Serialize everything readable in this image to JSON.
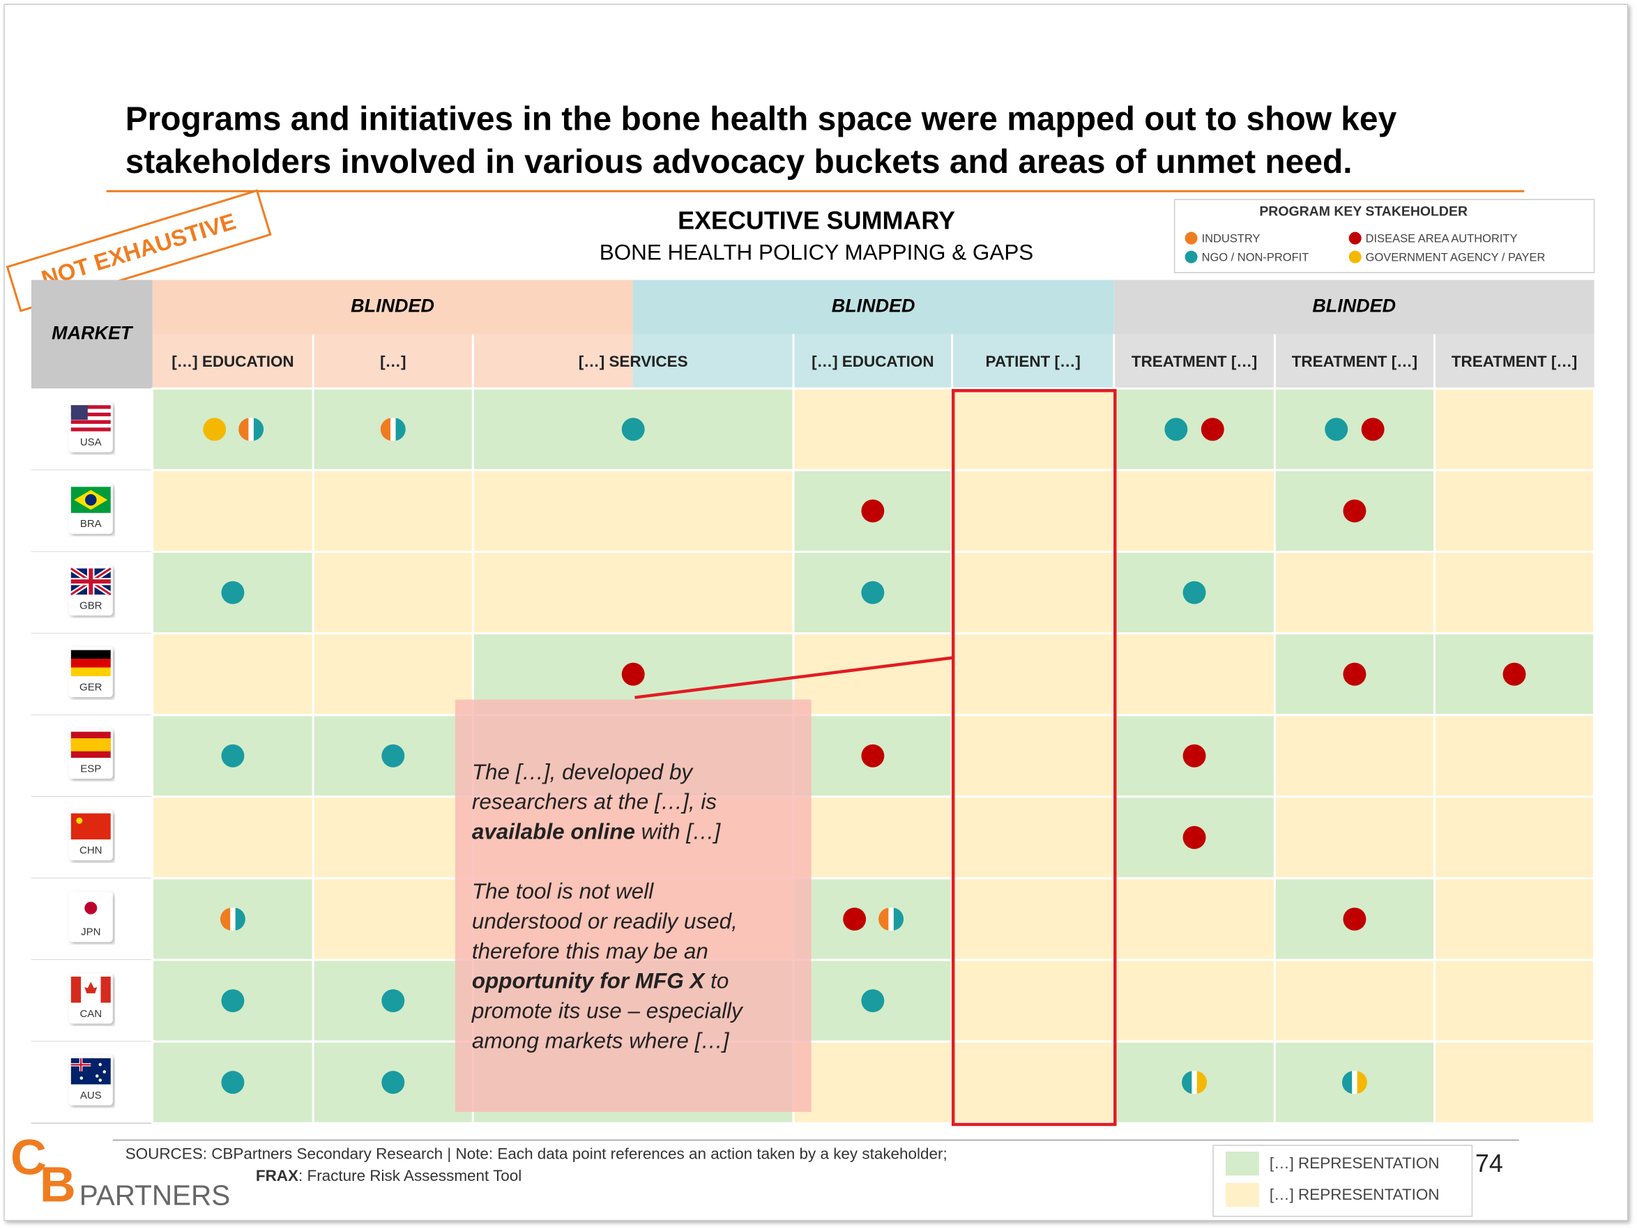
{
  "title": [
    "Programs and initiatives in the bone health space were mapped out to show key",
    "stakeholders involved in various advocacy buckets and areas of unmet need."
  ],
  "summary": {
    "heading": "EXECUTIVE SUMMARY",
    "subtitle": "BONE HEALTH POLICY MAPPING & GAPS"
  },
  "stamp": "NOT EXHAUSTIVE",
  "stakeholder_legend": {
    "title": "PROGRAM KEY STAKEHOLDER",
    "items": [
      {
        "name": "INDUSTRY",
        "color": "#f07c20"
      },
      {
        "name": "NGO / NON-PROFIT",
        "color": "#1a9ba0"
      },
      {
        "name": "DISEASE AREA AUTHORITY",
        "color": "#c00000"
      },
      {
        "name": "GOVERNMENT AGENCY / PAYER",
        "color": "#f5b800"
      }
    ]
  },
  "table": {
    "market_header": "MARKET",
    "groups": [
      {
        "label": "BLINDED",
        "color": "#fcd5bf"
      },
      {
        "label": "BLINDED",
        "color": "#bfe3e4"
      },
      {
        "label": "BLINDED",
        "color": "#d9d9d9"
      }
    ],
    "columns": [
      "[…] EDUCATION",
      "[…]",
      "[…] SERVICES",
      "[…] EDUCATION",
      "PATIENT […]",
      "TREATMENT […]",
      "TREATMENT […]",
      "TREATMENT […]"
    ],
    "rows": [
      {
        "market": "USA",
        "cells": [
          {
            "fill": "#d4ecca",
            "dots": [
              "#f5b800",
              [
                "#f07c20",
                "#1a9ba0"
              ]
            ]
          },
          {
            "fill": "#d4ecca",
            "dots": [
              [
                "#f07c20",
                "#1a9ba0"
              ]
            ]
          },
          {
            "fill": "#d4ecca",
            "dots": [
              "#1a9ba0"
            ]
          },
          {
            "fill": "#fff0c8",
            "dots": []
          },
          {
            "fill": "#fff0c8",
            "dots": []
          },
          {
            "fill": "#d4ecca",
            "dots": [
              "#1a9ba0",
              "#c00000"
            ]
          },
          {
            "fill": "#d4ecca",
            "dots": [
              "#1a9ba0",
              "#c00000"
            ]
          },
          {
            "fill": "#fff0c8",
            "dots": []
          }
        ]
      },
      {
        "market": "BRA",
        "cells": [
          {
            "fill": "#fff0c8",
            "dots": []
          },
          {
            "fill": "#fff0c8",
            "dots": []
          },
          {
            "fill": "#fff0c8",
            "dots": []
          },
          {
            "fill": "#d4ecca",
            "dots": [
              "#c00000"
            ]
          },
          {
            "fill": "#fff0c8",
            "dots": []
          },
          {
            "fill": "#fff0c8",
            "dots": []
          },
          {
            "fill": "#d4ecca",
            "dots": [
              "#c00000"
            ]
          },
          {
            "fill": "#fff0c8",
            "dots": []
          }
        ]
      },
      {
        "market": "GBR",
        "cells": [
          {
            "fill": "#d4ecca",
            "dots": [
              "#1a9ba0"
            ]
          },
          {
            "fill": "#fff0c8",
            "dots": []
          },
          {
            "fill": "#fff0c8",
            "dots": []
          },
          {
            "fill": "#d4ecca",
            "dots": [
              "#1a9ba0"
            ]
          },
          {
            "fill": "#fff0c8",
            "dots": []
          },
          {
            "fill": "#d4ecca",
            "dots": [
              "#1a9ba0"
            ]
          },
          {
            "fill": "#fff0c8",
            "dots": []
          },
          {
            "fill": "#fff0c8",
            "dots": []
          }
        ]
      },
      {
        "market": "GER",
        "cells": [
          {
            "fill": "#fff0c8",
            "dots": []
          },
          {
            "fill": "#fff0c8",
            "dots": []
          },
          {
            "fill": "#d4ecca",
            "dots": [
              "#c00000"
            ]
          },
          {
            "fill": "#fff0c8",
            "dots": []
          },
          {
            "fill": "#fff0c8",
            "dots": []
          },
          {
            "fill": "#fff0c8",
            "dots": []
          },
          {
            "fill": "#d4ecca",
            "dots": [
              "#c00000"
            ]
          },
          {
            "fill": "#d4ecca",
            "dots": [
              "#c00000"
            ]
          }
        ]
      },
      {
        "market": "ESP",
        "cells": [
          {
            "fill": "#d4ecca",
            "dots": [
              "#1a9ba0"
            ]
          },
          {
            "fill": "#d4ecca",
            "dots": [
              "#1a9ba0"
            ]
          },
          {
            "fill": "#d4ecca",
            "dots": []
          },
          {
            "fill": "#d4ecca",
            "dots": [
              "#c00000"
            ]
          },
          {
            "fill": "#fff0c8",
            "dots": []
          },
          {
            "fill": "#d4ecca",
            "dots": [
              "#c00000"
            ]
          },
          {
            "fill": "#fff0c8",
            "dots": []
          },
          {
            "fill": "#fff0c8",
            "dots": []
          }
        ]
      },
      {
        "market": "CHN",
        "cells": [
          {
            "fill": "#fff0c8",
            "dots": []
          },
          {
            "fill": "#fff0c8",
            "dots": []
          },
          {
            "fill": "#fff0c8",
            "dots": []
          },
          {
            "fill": "#fff0c8",
            "dots": []
          },
          {
            "fill": "#fff0c8",
            "dots": []
          },
          {
            "fill": "#d4ecca",
            "dots": [
              "#c00000"
            ]
          },
          {
            "fill": "#fff0c8",
            "dots": []
          },
          {
            "fill": "#fff0c8",
            "dots": []
          }
        ]
      },
      {
        "market": "JPN",
        "cells": [
          {
            "fill": "#d4ecca",
            "dots": [
              [
                "#f07c20",
                "#1a9ba0"
              ]
            ]
          },
          {
            "fill": "#fff0c8",
            "dots": []
          },
          {
            "fill": "#fff0c8",
            "dots": []
          },
          {
            "fill": "#d4ecca",
            "dots": [
              "#c00000",
              [
                "#f07c20",
                "#1a9ba0"
              ]
            ]
          },
          {
            "fill": "#fff0c8",
            "dots": []
          },
          {
            "fill": "#fff0c8",
            "dots": []
          },
          {
            "fill": "#d4ecca",
            "dots": [
              "#c00000"
            ]
          },
          {
            "fill": "#fff0c8",
            "dots": []
          }
        ]
      },
      {
        "market": "CAN",
        "cells": [
          {
            "fill": "#d4ecca",
            "dots": [
              "#1a9ba0"
            ]
          },
          {
            "fill": "#d4ecca",
            "dots": [
              "#1a9ba0"
            ]
          },
          {
            "fill": "#d4ecca",
            "dots": []
          },
          {
            "fill": "#d4ecca",
            "dots": [
              "#1a9ba0"
            ]
          },
          {
            "fill": "#fff0c8",
            "dots": []
          },
          {
            "fill": "#fff0c8",
            "dots": []
          },
          {
            "fill": "#fff0c8",
            "dots": []
          },
          {
            "fill": "#fff0c8",
            "dots": []
          }
        ]
      },
      {
        "market": "AUS",
        "cells": [
          {
            "fill": "#d4ecca",
            "dots": [
              "#1a9ba0"
            ]
          },
          {
            "fill": "#d4ecca",
            "dots": [
              "#1a9ba0"
            ]
          },
          {
            "fill": "#d4ecca",
            "dots": []
          },
          {
            "fill": "#fff0c8",
            "dots": []
          },
          {
            "fill": "#fff0c8",
            "dots": []
          },
          {
            "fill": "#d4ecca",
            "dots": [
              [
                "#1a9ba0",
                "#f5b800"
              ]
            ]
          },
          {
            "fill": "#d4ecca",
            "dots": [
              [
                "#1a9ba0",
                "#f5b800"
              ]
            ]
          },
          {
            "fill": "#fff0c8",
            "dots": []
          }
        ]
      }
    ]
  },
  "callout": {
    "lines": [
      [
        {
          "text": "The […], developed by"
        }
      ],
      [
        {
          "text": "researchers at the […], is"
        }
      ],
      [
        {
          "text": "available online",
          "bold": true
        },
        {
          "text": " with […]"
        }
      ],
      [],
      [
        {
          "text": "The tool is not well"
        }
      ],
      [
        {
          "text": "understood or readily used,"
        }
      ],
      [
        {
          "text": "therefore this may be an"
        }
      ],
      [
        {
          "text": "opportunity for MFG X",
          "bold": true
        },
        {
          "text": " to"
        }
      ],
      [
        {
          "text": "promote its use – especially"
        }
      ],
      [
        {
          "text": "among markets where […]"
        }
      ]
    ]
  },
  "footer": {
    "sources": "SOURCES: CBPartners Secondary Research | Note: Each data point references an action taken by a key stakeholder;",
    "frax_term": "FRAX",
    "frax_text": ": Fracture Risk Assessment Tool",
    "representation_legend": [
      {
        "label": "[…] REPRESENTATION",
        "color": "#d4ecca"
      },
      {
        "label": "[…] REPRESENTATION",
        "color": "#fff0c8"
      }
    ],
    "page_number": "74",
    "logo": {
      "c": "C",
      "b": "B",
      "name": "PARTNERS"
    }
  }
}
